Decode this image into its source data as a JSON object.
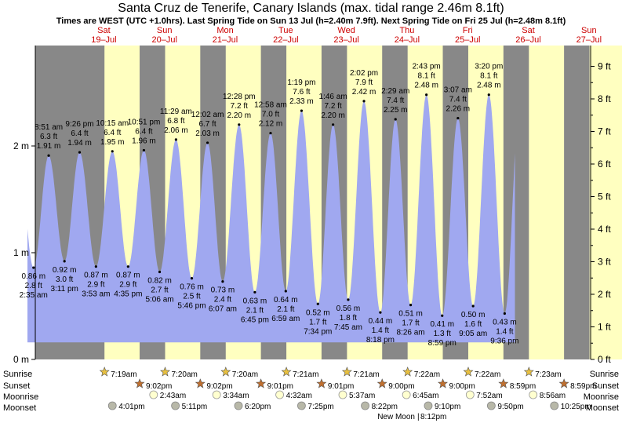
{
  "title": "Santa Cruz de Tenerife, Canary Islands (max. tidal range 2.46m 8.1ft)",
  "subtitle": "Times are WEST (UTC +1.0hrs). Last Spring Tide on Sun 13 Jul (h=2.40m 7.9ft). Next Spring Tide on Fri 25 Jul (h=2.48m 8.1ft)",
  "colors": {
    "night": "#888888",
    "day": "#ffffc0",
    "tide": "#a0a8f0",
    "day_header": "#cc0000"
  },
  "chart_data": {
    "type": "area",
    "xlabel": "",
    "ylabel": "",
    "y_left_ticks": [
      "0 m",
      "1 m",
      "2 m"
    ],
    "y_right_ticks": [
      "0 ft",
      "1 ft",
      "2 ft",
      "3 ft",
      "4 ft",
      "5 ft",
      "6 ft",
      "7 ft",
      "8 ft",
      "9 ft"
    ],
    "ylim_m": [
      0,
      2.74
    ],
    "days": [
      {
        "name": "Sat",
        "date": "19–Jul"
      },
      {
        "name": "Sun",
        "date": "20–Jul"
      },
      {
        "name": "Mon",
        "date": "21–Jul"
      },
      {
        "name": "Tue",
        "date": "22–Jul"
      },
      {
        "name": "Wed",
        "date": "23–Jul"
      },
      {
        "name": "Thu",
        "date": "24–Jul"
      },
      {
        "name": "Fri",
        "date": "25–Jul"
      },
      {
        "name": "Sat",
        "date": "26–Jul"
      },
      {
        "name": "Sun",
        "date": "27–Jul"
      }
    ],
    "tides": [
      {
        "type": "low",
        "time": "2:35 am",
        "m": "0.86 m",
        "ft": "2.8 ft",
        "h": 0.86,
        "t": -0.87
      },
      {
        "type": "high",
        "time": "8:51 am",
        "m": "1.91 m",
        "ft": "6.3 ft",
        "h": 1.91,
        "t": -0.62
      },
      {
        "type": "low",
        "time": "3:11 pm",
        "m": "0.92 m",
        "ft": "3.0 ft",
        "h": 0.92,
        "t": -0.36
      },
      {
        "type": "high",
        "time": "9:26 pm",
        "m": "1.94 m",
        "ft": "6.4 ft",
        "h": 1.94,
        "t": -0.11
      },
      {
        "type": "low",
        "time": "3:53 am",
        "m": "0.87 m",
        "ft": "2.9 ft",
        "h": 0.87,
        "t": 0.16
      },
      {
        "type": "high",
        "time": "10:15 am",
        "m": "1.95 m",
        "ft": "6.4 ft",
        "h": 1.95,
        "t": 0.43
      },
      {
        "type": "low",
        "time": "4:35 pm",
        "m": "0.87 m",
        "ft": "2.9 ft",
        "h": 0.87,
        "t": 0.69
      },
      {
        "type": "high",
        "time": "10:51 pm",
        "m": "1.96 m",
        "ft": "6.4 ft",
        "h": 1.96,
        "t": 0.95
      },
      {
        "type": "low",
        "time": "5:06 am",
        "m": "0.82 m",
        "ft": "2.7 ft",
        "h": 0.82,
        "t": 1.21
      },
      {
        "type": "high",
        "time": "11:29 am",
        "m": "2.06 m",
        "ft": "6.8 ft",
        "h": 2.06,
        "t": 1.48
      },
      {
        "type": "low",
        "time": "5:46 pm",
        "m": "0.76 m",
        "ft": "2.5 ft",
        "h": 0.76,
        "t": 1.74
      },
      {
        "type": "high",
        "time": "12:02 am",
        "m": "2.03 m",
        "ft": "6.7 ft",
        "h": 2.03,
        "t": 2.0
      },
      {
        "type": "low",
        "time": "6:07 am",
        "m": "0.73 m",
        "ft": "2.4 ft",
        "h": 0.73,
        "t": 2.25
      },
      {
        "type": "high",
        "time": "12:28 pm",
        "m": "2.20 m",
        "ft": "7.2 ft",
        "h": 2.2,
        "t": 2.52
      },
      {
        "type": "low",
        "time": "6:45 pm",
        "m": "0.63 m",
        "ft": "2.1 ft",
        "h": 0.63,
        "t": 2.78
      },
      {
        "type": "high",
        "time": "12:58 am",
        "m": "2.12 m",
        "ft": "7.0 ft",
        "h": 2.12,
        "t": 3.04
      },
      {
        "type": "low",
        "time": "6:59 am",
        "m": "0.64 m",
        "ft": "2.1 ft",
        "h": 0.64,
        "t": 3.29
      },
      {
        "type": "high",
        "time": "1:19 pm",
        "m": "2.33 m",
        "ft": "7.6 ft",
        "h": 2.33,
        "t": 3.55
      },
      {
        "type": "low",
        "time": "7:34 pm",
        "m": "0.52 m",
        "ft": "1.7 ft",
        "h": 0.52,
        "t": 3.82
      },
      {
        "type": "high",
        "time": "1:46 am",
        "m": "2.20 m",
        "ft": "7.2 ft",
        "h": 2.2,
        "t": 4.07
      },
      {
        "type": "low",
        "time": "7:45 am",
        "m": "0.56 m",
        "ft": "1.8 ft",
        "h": 0.56,
        "t": 4.32
      },
      {
        "type": "high",
        "time": "2:02 pm",
        "m": "2.42 m",
        "ft": "7.9 ft",
        "h": 2.42,
        "t": 4.58
      },
      {
        "type": "low",
        "time": "8:18 pm",
        "m": "0.44 m",
        "ft": "1.4 ft",
        "h": 0.44,
        "t": 4.85
      },
      {
        "type": "high",
        "time": "2:29 am",
        "m": "2.25 m",
        "ft": "7.4 ft",
        "h": 2.25,
        "t": 5.1
      },
      {
        "type": "low",
        "time": "8:26 am",
        "m": "0.51 m",
        "ft": "1.7 ft",
        "h": 0.51,
        "t": 5.35
      },
      {
        "type": "high",
        "time": "2:43 pm",
        "m": "2.48 m",
        "ft": "8.1 ft",
        "h": 2.48,
        "t": 5.61
      },
      {
        "type": "low",
        "time": "8:59 pm",
        "m": "0.41 m",
        "ft": "1.3 ft",
        "h": 0.41,
        "t": 5.87
      },
      {
        "type": "high",
        "time": "3:07 am",
        "m": "2.26 m",
        "ft": "7.4 ft",
        "h": 2.26,
        "t": 6.13
      },
      {
        "type": "low",
        "time": "9:05 am",
        "m": "0.50 m",
        "ft": "1.6 ft",
        "h": 0.5,
        "t": 6.38
      },
      {
        "type": "high",
        "time": "3:20 pm",
        "m": "2.48 m",
        "ft": "8.1 ft",
        "h": 2.48,
        "t": 6.64
      },
      {
        "type": "low",
        "time": "9:36 pm",
        "m": "0.43 m",
        "ft": "1.4 ft",
        "h": 0.43,
        "t": 6.9
      }
    ],
    "sunrise_t": [
      0.3,
      1.3,
      2.3,
      3.3,
      4.3,
      5.3,
      6.3,
      7.3
    ],
    "sunset_t": [
      0.88,
      1.88,
      2.88,
      3.88,
      4.88,
      5.88,
      6.88,
      7.88
    ]
  },
  "almanac": {
    "labels": {
      "sunrise": "Sunrise",
      "sunset": "Sunset",
      "moonrise": "Moonrise",
      "moonset": "Moonset"
    },
    "sunrise": [
      "7:19am",
      "7:20am",
      "7:20am",
      "7:21am",
      "7:21am",
      "7:22am",
      "7:22am",
      "7:23am"
    ],
    "sunset": [
      "9:02pm",
      "9:02pm",
      "9:01pm",
      "9:01pm",
      "9:00pm",
      "9:00pm",
      "8:59pm",
      "8:59pm"
    ],
    "moonrise": [
      "2:43am",
      "3:34am",
      "4:32am",
      "5:37am",
      "6:45am",
      "7:52am",
      "8:56am"
    ],
    "moonset": [
      "4:01pm",
      "5:11pm",
      "6:20pm",
      "7:25pm",
      "8:22pm",
      "9:10pm",
      "9:50pm",
      "10:25pm"
    ],
    "new_moon": "New Moon",
    "new_moon_time": "8:12pm"
  }
}
